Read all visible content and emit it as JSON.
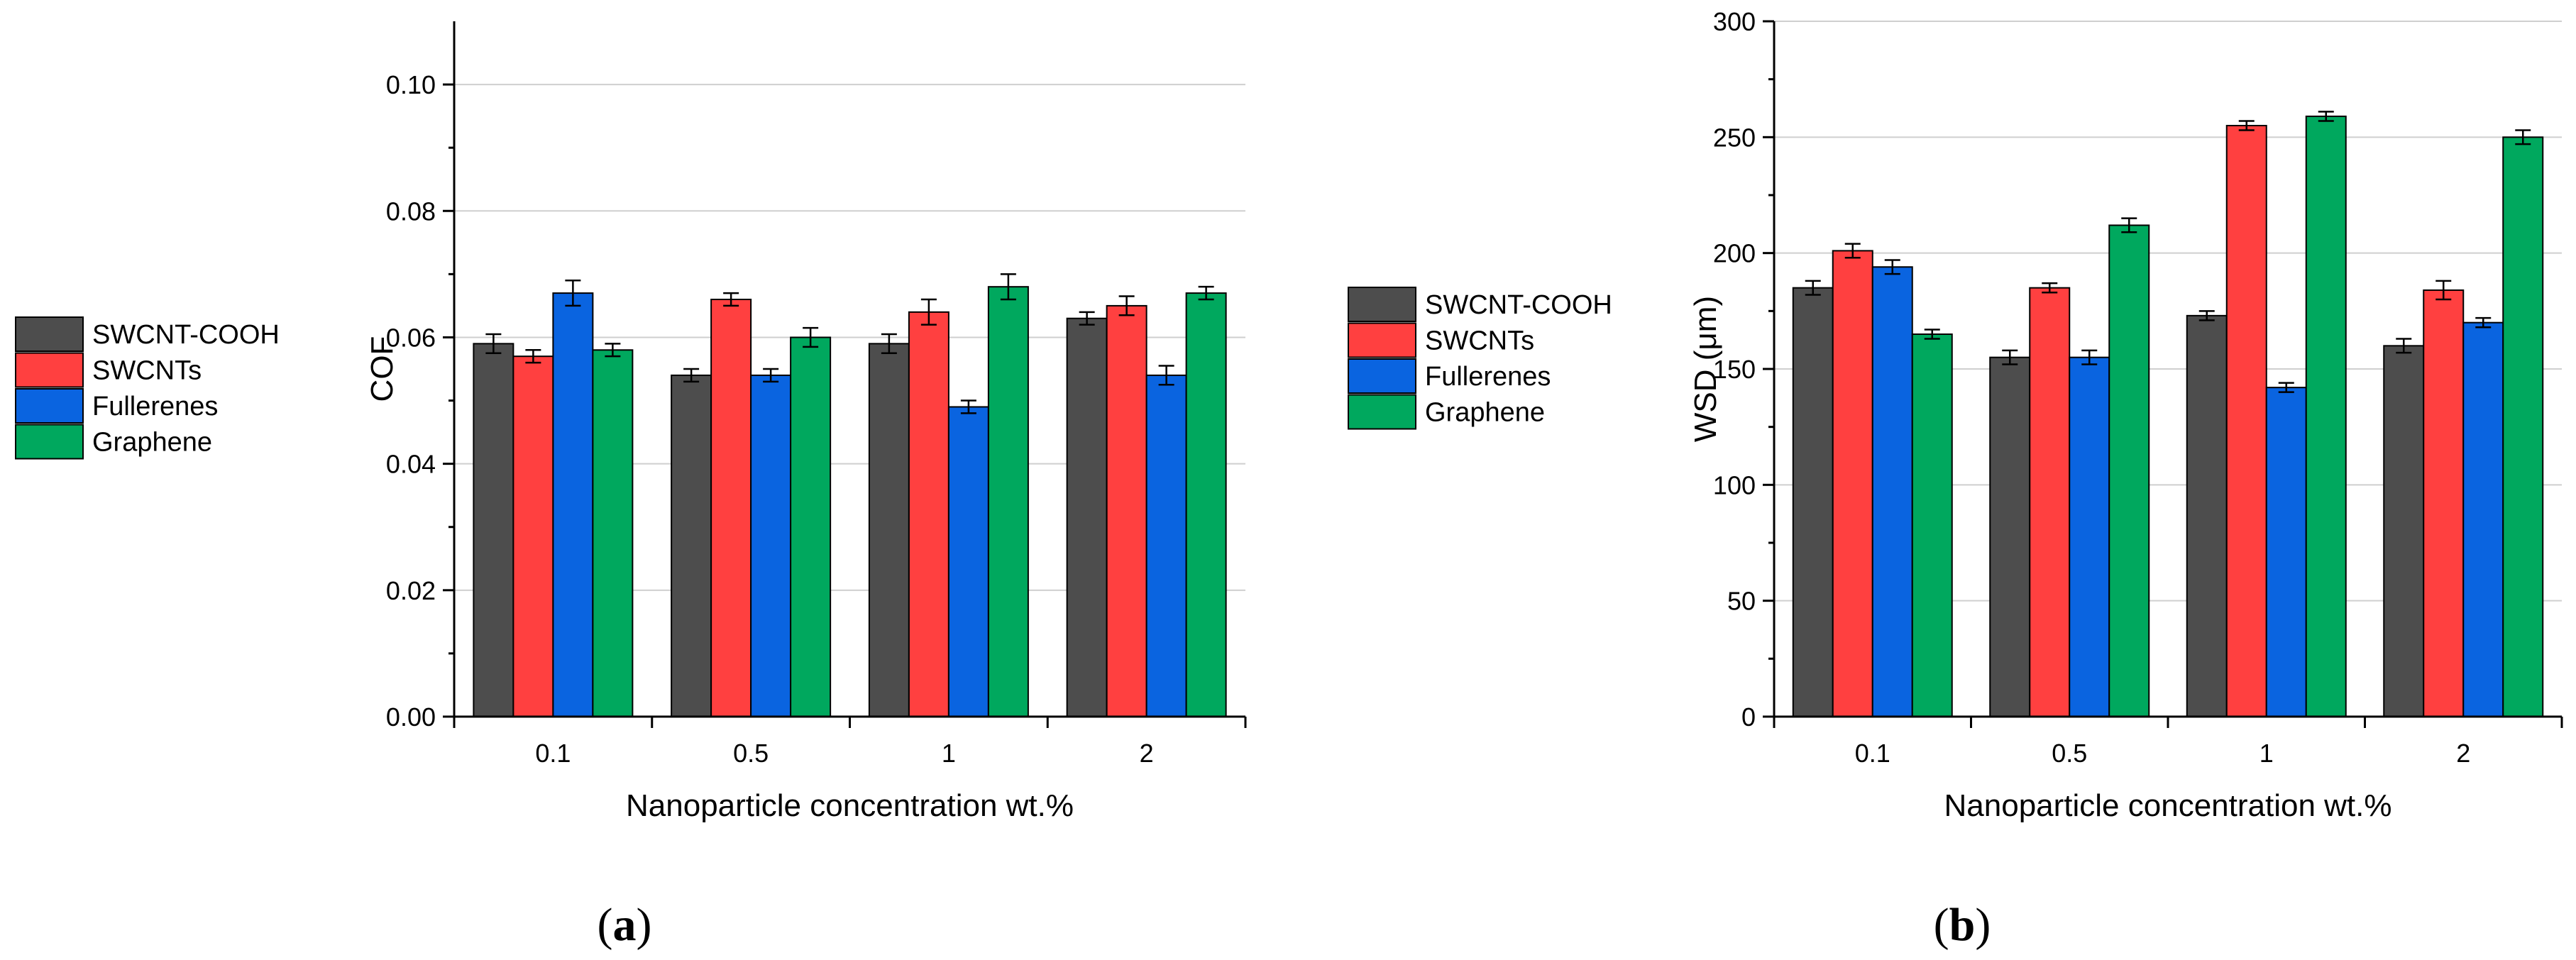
{
  "chart_data": [
    {
      "type": "bar",
      "caption": "(a)",
      "caption_open": "(",
      "caption_letter": "a",
      "caption_close": ")",
      "xlabel": "Nanoparticle concentration wt.%",
      "ylabel": "COF",
      "ylim": [
        0,
        0.11
      ],
      "yticks": [
        0.0,
        0.02,
        0.04,
        0.06,
        0.08,
        0.1
      ],
      "ytick_labels": [
        "0.00",
        "0.02",
        "0.04",
        "0.06",
        "0.08",
        "0.10"
      ],
      "grid": true,
      "legend_position": "left",
      "categories": [
        "0.1",
        "0.5",
        "1",
        "2"
      ],
      "series": [
        {
          "name": "SWCNT-COOH",
          "color": "#4d4d4d",
          "values": [
            0.059,
            0.054,
            0.059,
            0.063
          ],
          "errors": [
            0.0015,
            0.001,
            0.0015,
            0.001
          ]
        },
        {
          "name": "SWCNTs",
          "color": "#ff4040",
          "values": [
            0.057,
            0.066,
            0.064,
            0.065
          ],
          "errors": [
            0.001,
            0.001,
            0.002,
            0.0015
          ]
        },
        {
          "name": "Fullerenes",
          "color": "#0a64e0",
          "values": [
            0.067,
            0.054,
            0.049,
            0.054
          ],
          "errors": [
            0.002,
            0.001,
            0.001,
            0.0015
          ]
        },
        {
          "name": "Graphene",
          "color": "#00a85e",
          "values": [
            0.058,
            0.06,
            0.068,
            0.067
          ],
          "errors": [
            0.001,
            0.0015,
            0.002,
            0.001
          ]
        }
      ]
    },
    {
      "type": "bar",
      "caption": "(b)",
      "caption_open": "(",
      "caption_letter": "b",
      "caption_close": ")",
      "xlabel": "Nanoparticle concentration wt.%",
      "ylabel": "WSD (μm)",
      "ylim": [
        0,
        300
      ],
      "yticks": [
        0,
        50,
        100,
        150,
        200,
        250,
        300
      ],
      "ytick_labels": [
        "0",
        "50",
        "100",
        "150",
        "200",
        "250",
        "300"
      ],
      "grid": true,
      "legend_position": "left",
      "categories": [
        "0.1",
        "0.5",
        "1",
        "2"
      ],
      "series": [
        {
          "name": "SWCNT-COOH",
          "color": "#4d4d4d",
          "values": [
            185,
            155,
            173,
            160
          ],
          "errors": [
            3,
            3,
            2,
            3
          ]
        },
        {
          "name": "SWCNTs",
          "color": "#ff4040",
          "values": [
            201,
            185,
            255,
            184
          ],
          "errors": [
            3,
            2,
            2,
            4
          ]
        },
        {
          "name": "Fullerenes",
          "color": "#0a64e0",
          "values": [
            194,
            155,
            142,
            170
          ],
          "errors": [
            3,
            3,
            2,
            2
          ]
        },
        {
          "name": "Graphene",
          "color": "#00a85e",
          "values": [
            165,
            212,
            259,
            250
          ],
          "errors": [
            2,
            3,
            2,
            3
          ]
        }
      ]
    }
  ]
}
